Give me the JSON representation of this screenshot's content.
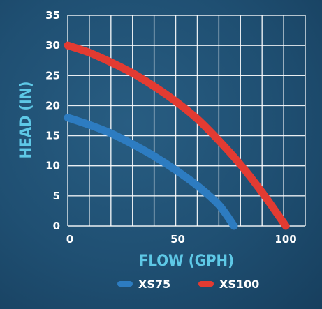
{
  "chart_data": {
    "type": "line",
    "title": "",
    "xlabel": "FLOW (GPH)",
    "ylabel": "HEAD (IN)",
    "xlim": [
      0,
      110
    ],
    "ylim": [
      0,
      35
    ],
    "x_ticks": [
      0,
      50,
      100
    ],
    "y_ticks": [
      0,
      5,
      10,
      15,
      20,
      25,
      30,
      35
    ],
    "grid": true,
    "legend_position": "bottom",
    "series": [
      {
        "name": "XS75",
        "color": "#2d7cc1",
        "x": [
          0,
          10,
          20,
          30,
          40,
          50,
          60,
          70,
          77
        ],
        "y": [
          18,
          16.8,
          15.4,
          13.6,
          11.6,
          9.3,
          6.7,
          3.5,
          0
        ]
      },
      {
        "name": "XS100",
        "color": "#e23b32",
        "x": [
          0,
          10,
          20,
          30,
          40,
          50,
          60,
          70,
          80,
          90,
          101
        ],
        "y": [
          30,
          28.8,
          27.2,
          25.4,
          23.2,
          20.7,
          17.8,
          14.2,
          10.2,
          5.6,
          0
        ]
      }
    ]
  },
  "colors": {
    "grid": "#ffffff",
    "axis_title": "#5ec8e6",
    "tick_label": "#ffffff",
    "background": "#1f4f72"
  }
}
